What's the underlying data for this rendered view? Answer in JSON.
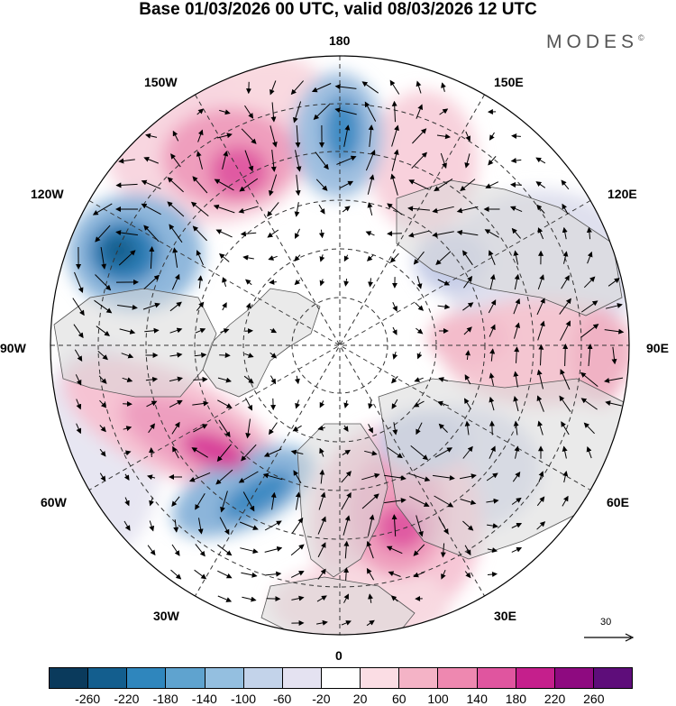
{
  "header": {
    "title": "Base 01/03/2026 00 UTC, valid 08/03/2026 12 UTC",
    "brand": "MODES",
    "brand_mark": "©"
  },
  "map": {
    "projection": "polar stereographic (north pole)",
    "longitude_labels": {
      "lon_180": "180",
      "lon_150E": "150E",
      "lon_120E": "120E",
      "lon_90E": "90E",
      "lon_60E": "60E",
      "lon_30E": "30E",
      "lon_0": "0",
      "lon_30W": "30W",
      "lon_60W": "60W",
      "lon_90W": "90W",
      "lon_120W": "120W",
      "lon_150W": "150W"
    }
  },
  "vector_scale": {
    "label": "30"
  },
  "colorbar": {
    "colors": [
      "#0a3a5c",
      "#135e8e",
      "#2f86bd",
      "#5fa3cf",
      "#94bfe0",
      "#c3d3ea",
      "#e4e2f1",
      "#ffffff",
      "#fbdde4",
      "#f4b3c6",
      "#ee88b0",
      "#e0559f",
      "#c51f8c",
      "#8e0a80",
      "#5e0d7a"
    ],
    "labels": [
      "-260",
      "-220",
      "-180",
      "-140",
      "-100",
      "-60",
      "-20",
      "20",
      "60",
      "100",
      "140",
      "180",
      "220",
      "260"
    ]
  }
}
